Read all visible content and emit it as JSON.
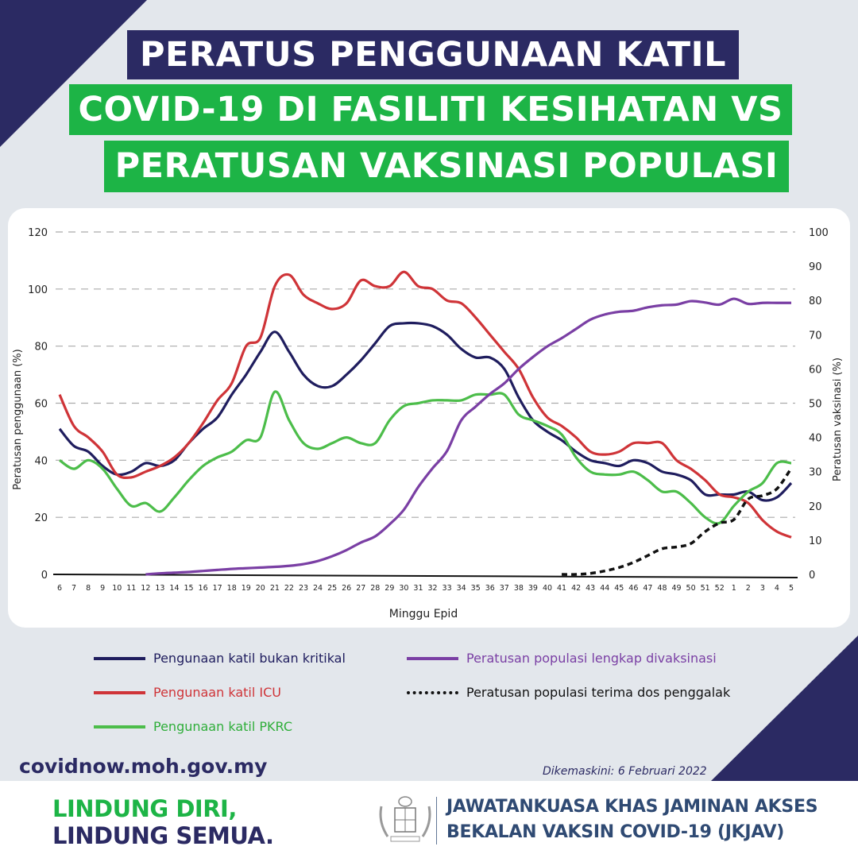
{
  "title": {
    "line1": "PERATUS PENGGUNAAN KATIL",
    "line2": "COVID-19 DI FASILITI KESIHATAN VS",
    "line3": "PERATUSAN VAKSINASI POPULASI"
  },
  "colors": {
    "navy": "#2b2a63",
    "green_bg": "#1db446",
    "bukan_kritikal": "#1f1d5e",
    "icu": "#cf3438",
    "pkrc": "#4cbd4a",
    "lengkap": "#7a3fa4",
    "penggalak": "#111111"
  },
  "chart_data": {
    "type": "line",
    "xlabel": "Minggu Epid",
    "ylabel_left": "Peratusan penggunaan (%)",
    "ylabel_right": "Peratusan vaksinasi (%)",
    "ylim_left": [
      0,
      120
    ],
    "yticks_left": [
      0,
      20,
      40,
      60,
      80,
      100,
      120
    ],
    "ylim_right": [
      0,
      100
    ],
    "yticks_right": [
      0,
      10,
      20,
      30,
      40,
      50,
      60,
      70,
      80,
      90,
      100
    ],
    "grid": "horizontal dashed",
    "categories": [
      "6",
      "7",
      "8",
      "9",
      "10",
      "11",
      "12",
      "13",
      "14",
      "15",
      "16",
      "17",
      "18",
      "19",
      "20",
      "21",
      "22",
      "23",
      "24",
      "25",
      "26",
      "27",
      "28",
      "29",
      "30",
      "31",
      "32",
      "33",
      "34",
      "35",
      "36",
      "37",
      "38",
      "39",
      "40",
      "41",
      "42",
      "43",
      "44",
      "45",
      "46",
      "47",
      "48",
      "49",
      "50",
      "51",
      "52",
      "1",
      "2",
      "3",
      "4",
      "5"
    ],
    "series": [
      {
        "name": "Pengunaan katil bukan kritikal",
        "axis": "left",
        "color": "#1f1d5e",
        "style": "solid",
        "values": [
          51,
          45,
          43,
          38,
          35,
          36,
          39,
          38,
          40,
          46,
          51,
          55,
          63,
          70,
          78,
          85,
          78,
          70,
          66,
          66,
          70,
          75,
          81,
          87,
          88,
          88,
          87,
          84,
          79,
          76,
          76,
          72,
          62,
          54,
          50,
          47,
          43,
          40,
          39,
          38,
          40,
          39,
          36,
          35,
          33,
          28,
          28,
          28,
          29,
          26,
          27,
          32
        ]
      },
      {
        "name": "Pengunaan katil ICU",
        "axis": "left",
        "color": "#cf3438",
        "style": "solid",
        "values": [
          63,
          52,
          48,
          43,
          35,
          34,
          36,
          38,
          41,
          46,
          53,
          61,
          67,
          80,
          83,
          101,
          105,
          98,
          95,
          93,
          95,
          103,
          101,
          101,
          106,
          101,
          100,
          96,
          95,
          90,
          84,
          78,
          72,
          62,
          55,
          52,
          48,
          43,
          42,
          43,
          46,
          46,
          46,
          40,
          37,
          33,
          28,
          27,
          25,
          19,
          15,
          13
        ]
      },
      {
        "name": "Pengunaan katil PKRC",
        "axis": "left",
        "color": "#4cbd4a",
        "style": "solid",
        "values": [
          40,
          37,
          40,
          37,
          30,
          24,
          25,
          22,
          27,
          33,
          38,
          41,
          43,
          47,
          48,
          64,
          54,
          46,
          44,
          46,
          48,
          46,
          46,
          54,
          59,
          60,
          61,
          61,
          61,
          63,
          63,
          63,
          56,
          54,
          52,
          49,
          41,
          36,
          35,
          35,
          36,
          33,
          29,
          29,
          25,
          20,
          18,
          24,
          29,
          32,
          39,
          39
        ]
      },
      {
        "name": "Peratusan populasi lengkap divaksinasi",
        "axis": "right",
        "color": "#7a3fa4",
        "style": "solid",
        "values": [
          null,
          null,
          null,
          null,
          null,
          null,
          0,
          0.3,
          0.5,
          0.7,
          1,
          1.3,
          1.6,
          1.8,
          2,
          2.2,
          2.5,
          3,
          3.9,
          5.3,
          7.1,
          9.3,
          11.1,
          14.6,
          18.9,
          25.5,
          31,
          36,
          45,
          49,
          52.7,
          55.8,
          60,
          63.5,
          66.6,
          69,
          71.7,
          74.4,
          75.9,
          76.7,
          77,
          78,
          78.6,
          78.8,
          79.8,
          79.4,
          78.8,
          80.5,
          79,
          79.3,
          79.3,
          79.3
        ]
      },
      {
        "name": "Peratusan populasi terima dos penggalak",
        "axis": "right",
        "color": "#111111",
        "style": "dotted",
        "values": [
          null,
          null,
          null,
          null,
          null,
          null,
          null,
          null,
          null,
          null,
          null,
          null,
          null,
          null,
          null,
          null,
          null,
          null,
          null,
          null,
          null,
          null,
          null,
          null,
          null,
          null,
          null,
          null,
          null,
          null,
          null,
          null,
          null,
          null,
          null,
          0,
          0,
          0.3,
          1,
          2,
          3.5,
          5.5,
          7.5,
          8,
          9,
          12.5,
          15,
          16,
          22,
          23,
          25,
          31
        ]
      }
    ]
  },
  "footer": {
    "url": "covidnow.moh.gov.my",
    "updated": "Dikemaskini: 6 Februari 2022",
    "slogan_line1": "LINDUNG DIRI,",
    "slogan_line2": "LINDUNG SEMUA.",
    "org_line1": "JAWATANKUASA KHAS JAMINAN AKSES",
    "org_line2": "BEKALAN VAKSIN COVID-19 (JKJAV)"
  }
}
